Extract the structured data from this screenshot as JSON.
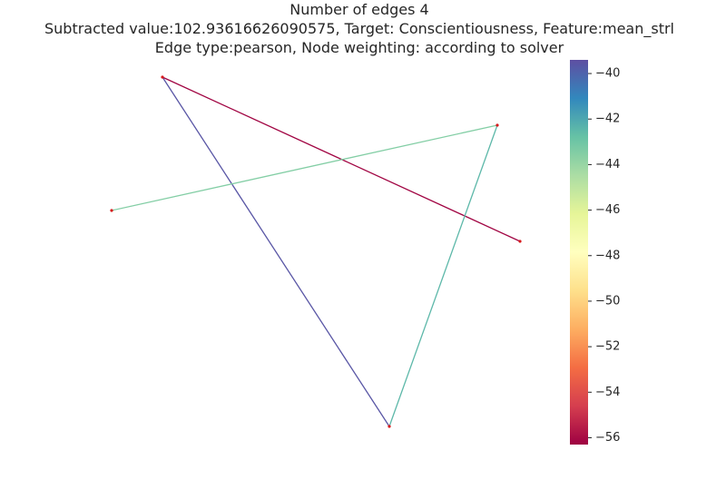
{
  "title": {
    "line1": "Number of edges 4",
    "line2": "Subtracted value:102.93616626090575, Target: Conscientiousness, Feature:mean_strl",
    "line3": "Edge type:pearson, Node weighting: according to solver"
  },
  "graph": {
    "node_color": "#d7191c",
    "nodes": [
      {
        "id": "n1"
      },
      {
        "id": "n2"
      },
      {
        "id": "n3"
      },
      {
        "id": "n4"
      },
      {
        "id": "n5"
      }
    ],
    "edges": [
      {
        "source": "n1",
        "target": "n3",
        "weight": -39.6
      },
      {
        "source": "n1",
        "target": "n5",
        "weight": -56.2
      },
      {
        "source": "n2",
        "target": "n4",
        "weight": -43.5
      },
      {
        "source": "n4",
        "target": "n3",
        "weight": -42.5
      }
    ]
  },
  "colorbar": {
    "colormap": "Spectral",
    "vmin": -56.3,
    "vmax": -39.4,
    "ticks": [
      {
        "value": -40,
        "label": "−40"
      },
      {
        "value": -42,
        "label": "−42"
      },
      {
        "value": -44,
        "label": "−44"
      },
      {
        "value": -46,
        "label": "−46"
      },
      {
        "value": -48,
        "label": "−48"
      },
      {
        "value": -50,
        "label": "−50"
      },
      {
        "value": -52,
        "label": "−52"
      },
      {
        "value": -54,
        "label": "−54"
      },
      {
        "value": -56,
        "label": "−56"
      }
    ]
  }
}
